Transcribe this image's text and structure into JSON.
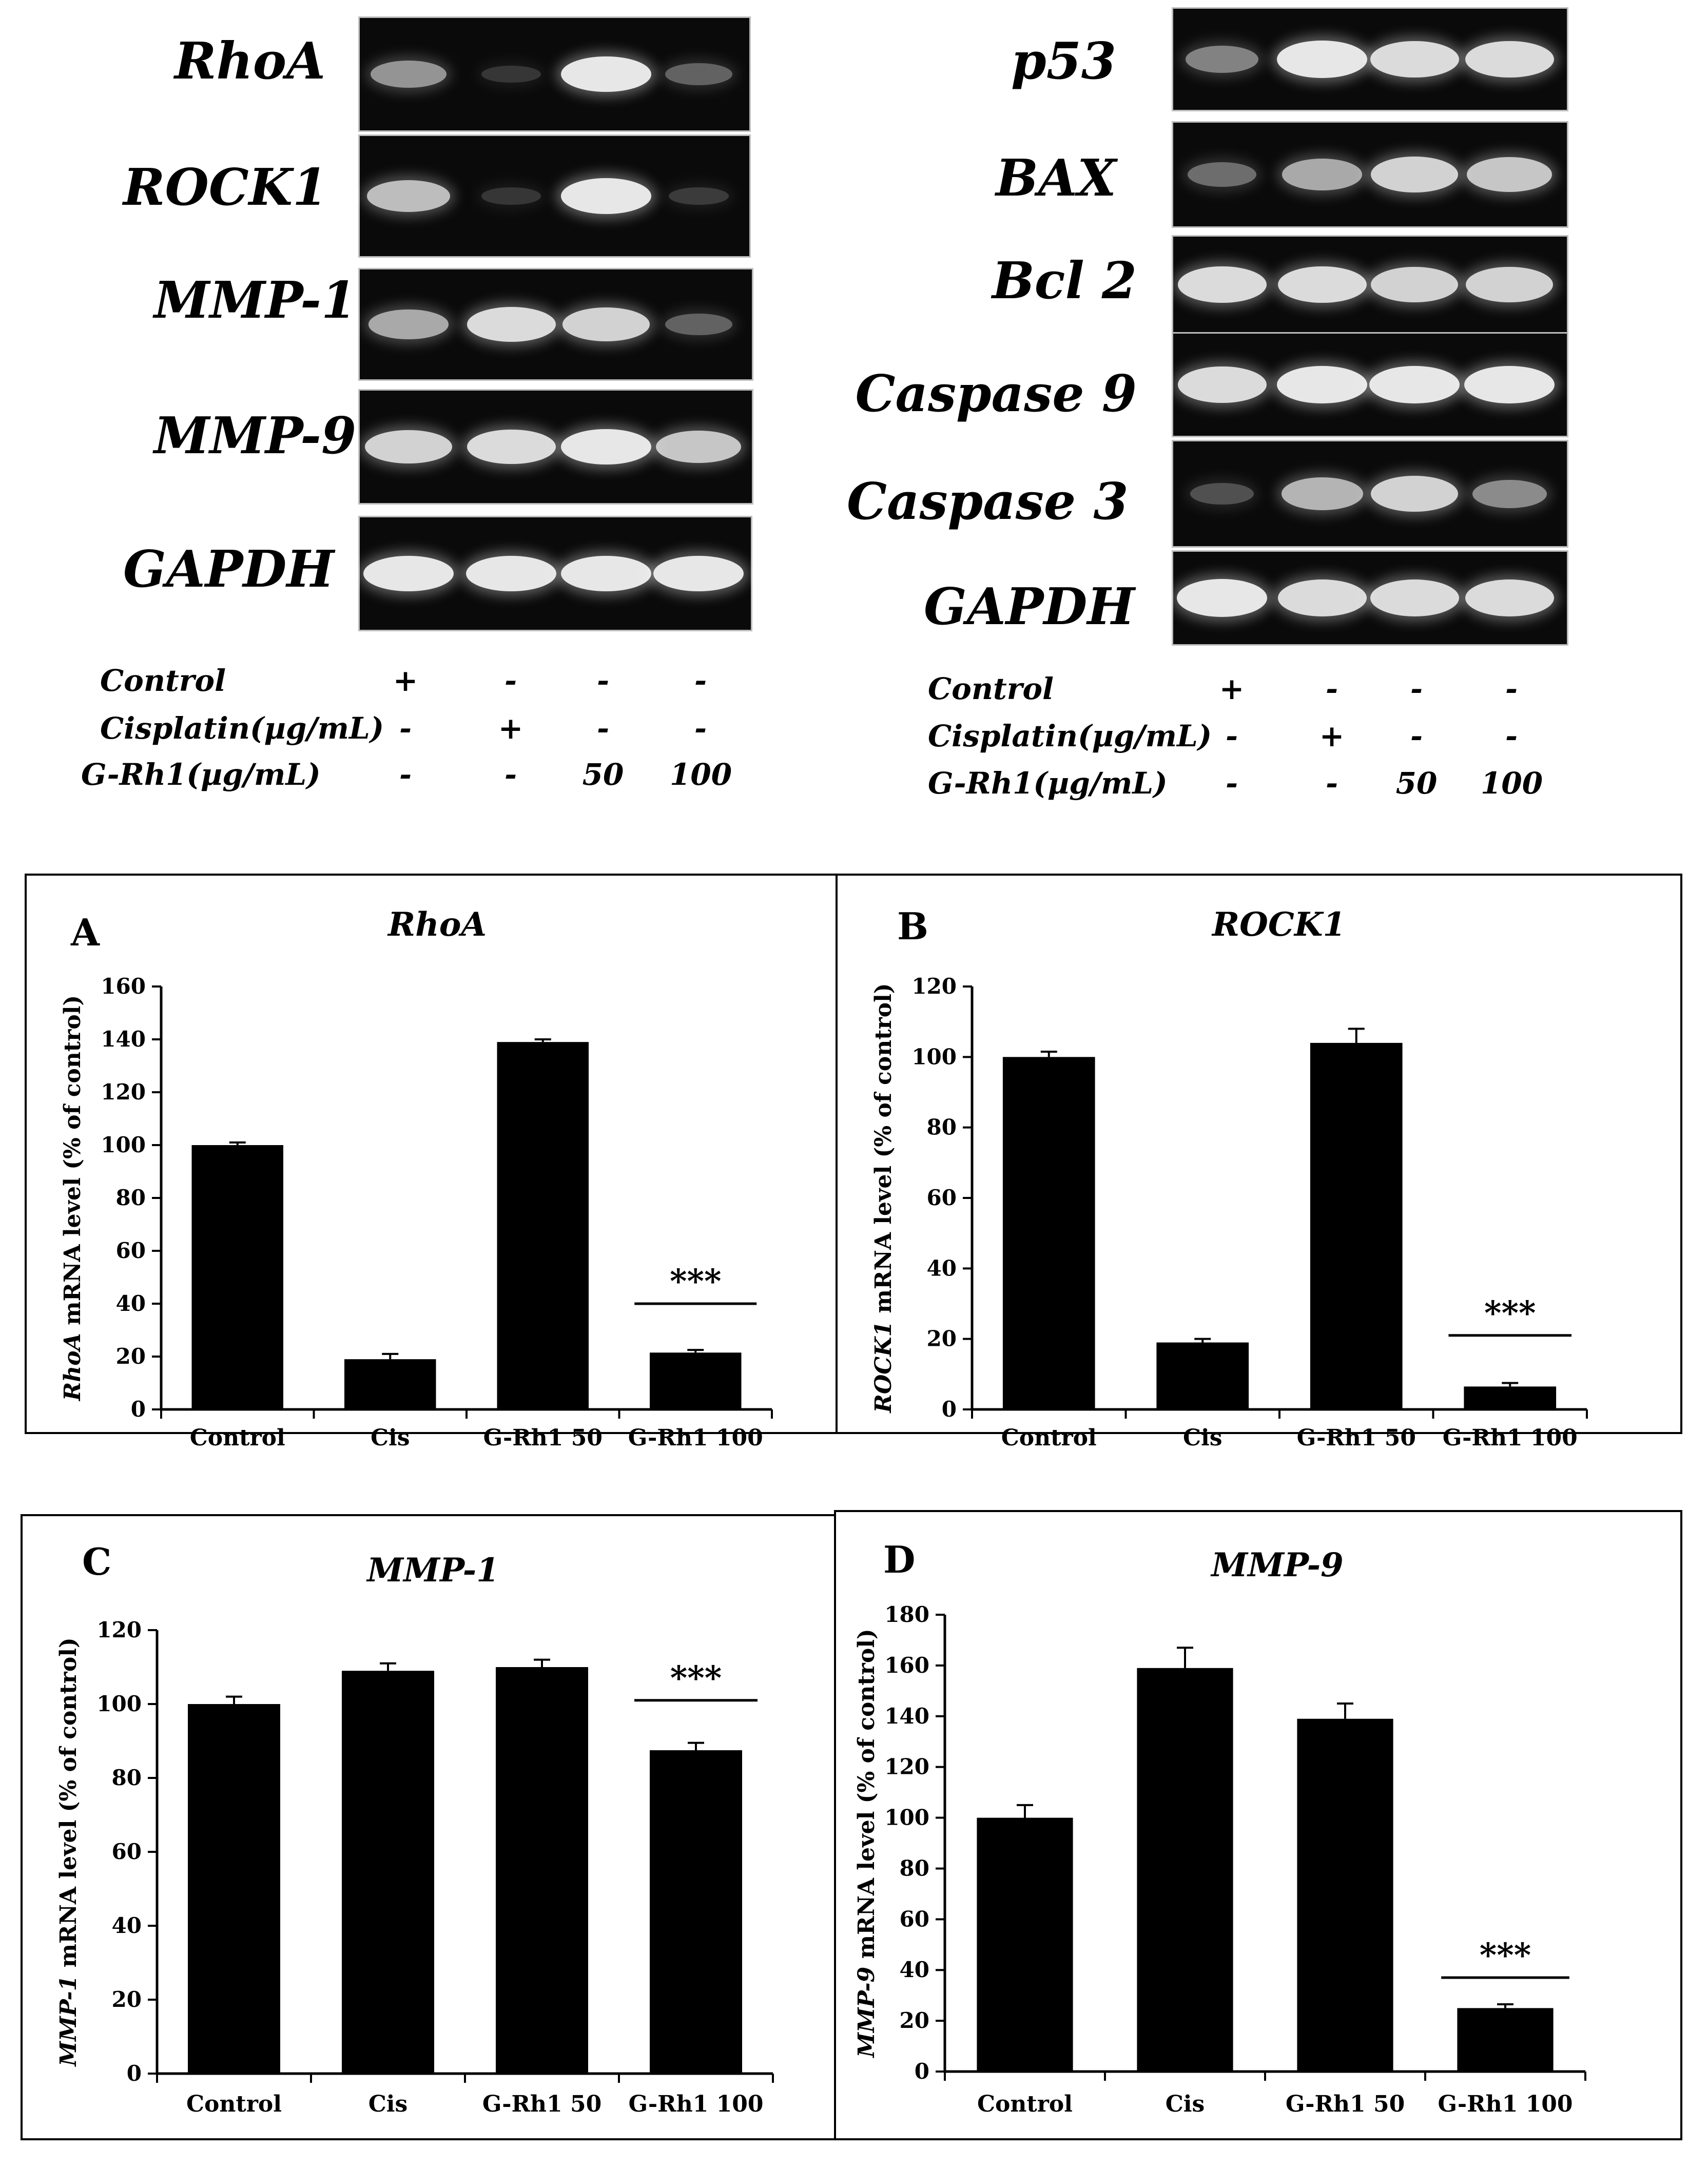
{
  "gels": {
    "left": {
      "rows": [
        {
          "label": "RhoA",
          "bands": [
            0.55,
            0.08,
            0.95,
            0.3
          ]
        },
        {
          "label": "ROCK1",
          "bands": [
            0.75,
            0.08,
            0.95,
            0.1
          ]
        },
        {
          "label": "MMP-1",
          "bands": [
            0.65,
            0.9,
            0.85,
            0.3
          ]
        },
        {
          "label": "MMP-9",
          "bands": [
            0.85,
            0.9,
            0.95,
            0.8
          ]
        },
        {
          "label": "GAPDH",
          "bands": [
            0.95,
            0.95,
            0.95,
            0.95
          ]
        }
      ],
      "legend": {
        "rows": [
          {
            "label": "Control",
            "values": [
              "+",
              "-",
              "-",
              "-"
            ]
          },
          {
            "label": "Cisplatin(µg/mL)",
            "values": [
              "-",
              "+",
              "-",
              "-"
            ]
          },
          {
            "label": "G-Rh1(µg/mL)",
            "values": [
              "-",
              "-",
              "50",
              "100"
            ]
          }
        ]
      }
    },
    "right": {
      "rows": [
        {
          "label": "p53",
          "bands": [
            0.45,
            0.95,
            0.9,
            0.9
          ]
        },
        {
          "label": "BAX",
          "bands": [
            0.35,
            0.65,
            0.85,
            0.8
          ]
        },
        {
          "label": "Bcl 2",
          "bands": [
            0.9,
            0.9,
            0.85,
            0.85
          ]
        },
        {
          "label": "Caspase 9",
          "bands": [
            0.9,
            0.95,
            0.95,
            0.95
          ]
        },
        {
          "label": "Caspase 3",
          "bands": [
            0.2,
            0.7,
            0.85,
            0.5
          ]
        },
        {
          "label": "GAPDH",
          "bands": [
            0.95,
            0.9,
            0.9,
            0.9
          ]
        }
      ],
      "legend": {
        "rows": [
          {
            "label": "Control",
            "values": [
              "+",
              "-",
              "-",
              "-"
            ]
          },
          {
            "label": "Cisplatin(µg/mL)",
            "values": [
              "-",
              "+",
              "-",
              "-"
            ]
          },
          {
            "label": "G-Rh1(µg/mL)",
            "values": [
              "-",
              "-",
              "50",
              "100"
            ]
          }
        ]
      }
    }
  },
  "chart_data": [
    {
      "panel": "A",
      "type": "bar",
      "title": "RhoA",
      "ylabel_gene": "RhoA",
      "ylabel_rest": " mRNA level (% of control)",
      "categories": [
        "Control",
        "Cis",
        "G-Rh1 50",
        "G-Rh1 100"
      ],
      "values": [
        100,
        19,
        139,
        21.5
      ],
      "errors": [
        1,
        2,
        1,
        1
      ],
      "ylim": [
        0,
        160
      ],
      "yticks": [
        "0",
        "20",
        "40",
        "60",
        "80",
        "100",
        "120",
        "140",
        "160"
      ],
      "significance": "***",
      "significance_y": 40
    },
    {
      "panel": "B",
      "type": "bar",
      "title": "ROCK1",
      "ylabel_gene": "ROCK1",
      "ylabel_rest": " mRNA level (% of control)",
      "categories": [
        "Control",
        "Cis",
        "G-Rh1 50",
        "G-Rh1 100"
      ],
      "values": [
        100,
        19,
        104,
        6.5
      ],
      "errors": [
        1.5,
        1,
        4,
        1
      ],
      "ylim": [
        0,
        120
      ],
      "yticks": [
        "0",
        "20",
        "40",
        "60",
        "80",
        "100",
        "120"
      ],
      "significance": "***",
      "significance_y": 21
    },
    {
      "panel": "C",
      "type": "bar",
      "title": "MMP-1",
      "ylabel_gene": "MMP-1",
      "ylabel_rest": " mRNA level (% of control)",
      "categories": [
        "Control",
        "Cis",
        "G-Rh1 50",
        "G-Rh1 100"
      ],
      "values": [
        100,
        109,
        110,
        87.5
      ],
      "errors": [
        2,
        2,
        2,
        2
      ],
      "ylim": [
        0,
        120
      ],
      "yticks": [
        "0",
        "20",
        "40",
        "60",
        "80",
        "100",
        "120"
      ],
      "significance": "***",
      "significance_y": 101
    },
    {
      "panel": "D",
      "type": "bar",
      "title": "MMP-9",
      "ylabel_gene": "MMP-9",
      "ylabel_rest": " mRNA level (% of control)",
      "categories": [
        "Control",
        "Cis",
        "G-Rh1 50",
        "G-Rh1 100"
      ],
      "values": [
        100,
        159,
        139,
        25
      ],
      "errors": [
        5,
        8,
        6,
        1.5
      ],
      "ylim": [
        0,
        180
      ],
      "yticks": [
        "0",
        "20",
        "40",
        "60",
        "80",
        "100",
        "120",
        "140",
        "160",
        "180"
      ],
      "significance": "***",
      "significance_y": 37
    }
  ]
}
